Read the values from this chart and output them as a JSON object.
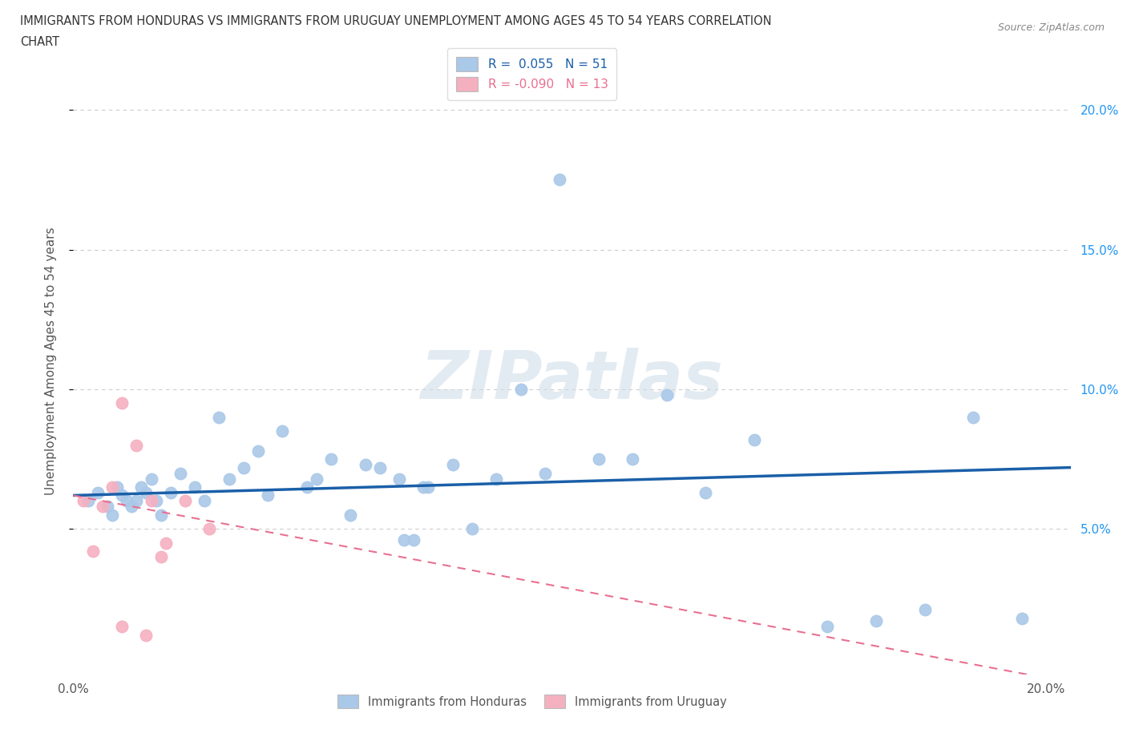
{
  "title_line1": "IMMIGRANTS FROM HONDURAS VS IMMIGRANTS FROM URUGUAY UNEMPLOYMENT AMONG AGES 45 TO 54 YEARS CORRELATION",
  "title_line2": "CHART",
  "source": "Source: ZipAtlas.com",
  "ylabel": "Unemployment Among Ages 45 to 54 years",
  "xlim": [
    0.0,
    0.205
  ],
  "ylim": [
    -0.002,
    0.222
  ],
  "yticks": [
    0.05,
    0.1,
    0.15,
    0.2
  ],
  "xticks": [
    0.0,
    0.05,
    0.1,
    0.15,
    0.2
  ],
  "ytick_labels_right": [
    "5.0%",
    "10.0%",
    "15.0%",
    "20.0%"
  ],
  "honduras_r": 0.055,
  "honduras_n": 51,
  "uruguay_r": -0.09,
  "uruguay_n": 13,
  "honduras_color": "#aac8e8",
  "uruguay_color": "#f5b0c0",
  "honduras_line_color": "#1a5fa8",
  "uruguay_line_color": "#e87090",
  "watermark": "ZIPatlas",
  "honduras_x": [
    0.003,
    0.005,
    0.007,
    0.008,
    0.009,
    0.01,
    0.011,
    0.012,
    0.013,
    0.014,
    0.015,
    0.016,
    0.017,
    0.018,
    0.02,
    0.022,
    0.025,
    0.027,
    0.03,
    0.032,
    0.035,
    0.038,
    0.04,
    0.043,
    0.048,
    0.05,
    0.053,
    0.057,
    0.06,
    0.063,
    0.067,
    0.07,
    0.073,
    0.078,
    0.082,
    0.087,
    0.092,
    0.097,
    0.1,
    0.108,
    0.115,
    0.122,
    0.13,
    0.14,
    0.155,
    0.165,
    0.175,
    0.185,
    0.195,
    0.068,
    0.072
  ],
  "honduras_y": [
    0.06,
    0.063,
    0.058,
    0.055,
    0.065,
    0.062,
    0.06,
    0.058,
    0.06,
    0.065,
    0.063,
    0.068,
    0.06,
    0.055,
    0.063,
    0.07,
    0.065,
    0.06,
    0.09,
    0.068,
    0.072,
    0.078,
    0.062,
    0.085,
    0.065,
    0.068,
    0.075,
    0.055,
    0.073,
    0.072,
    0.068,
    0.046,
    0.065,
    0.073,
    0.05,
    0.068,
    0.1,
    0.07,
    0.175,
    0.075,
    0.075,
    0.098,
    0.063,
    0.082,
    0.015,
    0.017,
    0.021,
    0.09,
    0.018,
    0.046,
    0.065
  ],
  "uruguay_x": [
    0.002,
    0.004,
    0.006,
    0.008,
    0.01,
    0.013,
    0.016,
    0.019,
    0.023,
    0.028,
    0.01,
    0.015,
    0.018
  ],
  "uruguay_y": [
    0.06,
    0.042,
    0.058,
    0.065,
    0.095,
    0.08,
    0.06,
    0.045,
    0.06,
    0.05,
    0.015,
    0.012,
    0.04
  ]
}
